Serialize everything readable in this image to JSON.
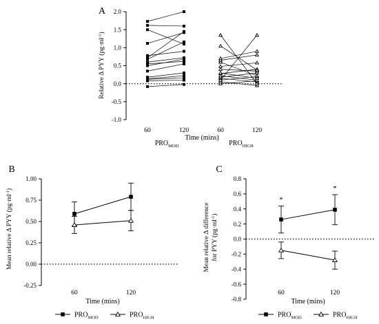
{
  "chart_data": [
    {
      "type": "line",
      "panel_label": "A",
      "ylabel": "Relative Δ PYY (pg·ml",
      "ylabel_sup": "-1",
      "ylabel_close": ")",
      "xlabel": "Time (mins)",
      "ylim": [
        -1.0,
        2.0
      ],
      "yticks": [
        "2.0",
        "1.5",
        "1.0",
        "0.5",
        "0.0",
        "-0.5",
        "-1.0"
      ],
      "xticks": [
        "60",
        "120",
        "60",
        "120"
      ],
      "groups": [
        {
          "name": "PRO",
          "sub": "MOD",
          "marker": "square",
          "pairs": [
            [
              -0.08,
              -0.02
            ],
            [
              0.08,
              0.1
            ],
            [
              0.12,
              0.16
            ],
            [
              0.14,
              0.22
            ],
            [
              0.18,
              0.3
            ],
            [
              0.35,
              0.55
            ],
            [
              0.5,
              0.68
            ],
            [
              0.55,
              0.62
            ],
            [
              0.6,
              0.72
            ],
            [
              0.68,
              1.16
            ],
            [
              0.72,
              1.45
            ],
            [
              0.78,
              0.9
            ],
            [
              1.12,
              1.42
            ],
            [
              1.5,
              1.1
            ],
            [
              1.62,
              1.6
            ],
            [
              1.73,
              2.0
            ]
          ]
        },
        {
          "name": "PRO",
          "sub": "HIGH",
          "marker": "triangle",
          "pairs": [
            [
              0.0,
              0.08
            ],
            [
              0.05,
              -0.05
            ],
            [
              0.1,
              0.2
            ],
            [
              0.15,
              0.05
            ],
            [
              0.18,
              0.3
            ],
            [
              0.22,
              0.1
            ],
            [
              0.28,
              0.4
            ],
            [
              0.3,
              0.15
            ],
            [
              0.4,
              0.35
            ],
            [
              0.48,
              0.58
            ],
            [
              0.6,
              0.22
            ],
            [
              0.65,
              0.8
            ],
            [
              0.7,
              0.9
            ],
            [
              1.05,
              0.38
            ],
            [
              1.35,
              0.0
            ],
            [
              0.1,
              1.35
            ]
          ]
        }
      ]
    },
    {
      "type": "line",
      "panel_label": "B",
      "ylabel": "Mean relative Δ PYY (pg·ml",
      "ylabel_sup": "-1",
      "ylabel_close": ")",
      "xlabel": "Time (mins)",
      "ylim": [
        -0.25,
        1.0
      ],
      "yticks": [
        "1.00",
        "0.75",
        "0.50",
        "0.25",
        "0.00",
        "-0.25"
      ],
      "categories": [
        "60",
        "120"
      ],
      "series": [
        {
          "name": "PRO",
          "sub": "MOD",
          "marker": "square",
          "values": [
            0.59,
            0.79
          ],
          "errors": [
            0.14,
            0.16
          ]
        },
        {
          "name": "PRO",
          "sub": "HIGH",
          "marker": "triangle",
          "values": [
            0.46,
            0.51
          ],
          "errors": [
            0.1,
            0.12
          ]
        }
      ]
    },
    {
      "type": "line",
      "panel_label": "C",
      "ylabel_line1": "Mean relative Δ difference",
      "ylabel_line2": "for PYY (pg·ml",
      "ylabel_sup": "-1",
      "ylabel_close": ")",
      "xlabel": "Time (mins)",
      "ylim": [
        -0.8,
        0.8
      ],
      "yticks": [
        "0.8",
        "0.6",
        "0.4",
        "0.2",
        "0.0",
        "-0.2",
        "-0.4",
        "-0.6",
        "-0.8"
      ],
      "categories": [
        "60",
        "120"
      ],
      "significance": [
        "*",
        "*"
      ],
      "series": [
        {
          "name": "PRO",
          "sub": "MOD",
          "marker": "square",
          "values": [
            0.26,
            0.39
          ],
          "errors": [
            0.18,
            0.2
          ]
        },
        {
          "name": "PRO",
          "sub": "HIGH",
          "marker": "triangle",
          "values": [
            -0.15,
            -0.28
          ],
          "errors": [
            0.11,
            0.12
          ]
        }
      ]
    }
  ]
}
